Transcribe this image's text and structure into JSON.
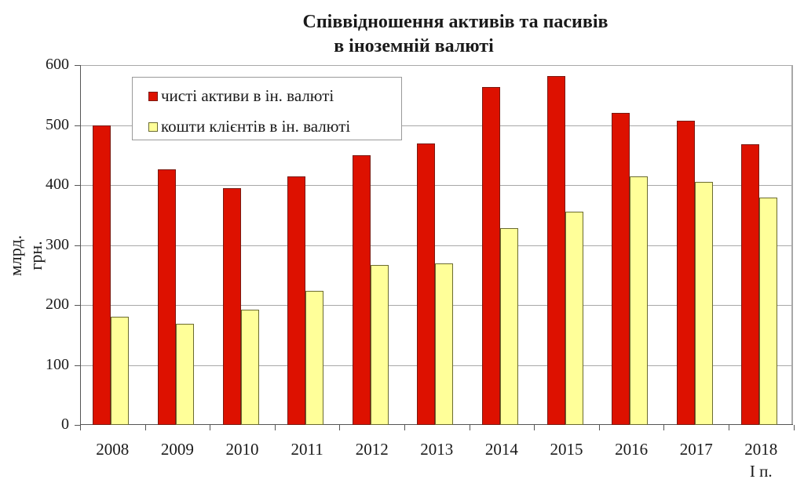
{
  "chart_data": {
    "type": "bar",
    "title": "Співвідношення активів та пасивів в іноземній валюті",
    "title_lines": [
      "Співвідношення активів та пасивів",
      "в іноземній валюті"
    ],
    "xlabel": "",
    "ylabel": "млрд. грн.",
    "ylim": [
      0,
      600
    ],
    "yticks": [
      0,
      100,
      200,
      300,
      400,
      500,
      600
    ],
    "grid": true,
    "legend_position": "top-left inside",
    "categories": [
      "2008",
      "2009",
      "2010",
      "2011",
      "2012",
      "2013",
      "2014",
      "2015",
      "2016",
      "2017",
      "2018"
    ],
    "category_sublabels": [
      "",
      "",
      "",
      "",
      "",
      "",
      "",
      "",
      "",
      "",
      "І п."
    ],
    "series": [
      {
        "name": "чисті активи в ін. валюті",
        "color": "#dd1100",
        "values": [
          500,
          426,
          395,
          415,
          450,
          469,
          563,
          582,
          520,
          507,
          468
        ]
      },
      {
        "name": "кошти клієнтів в ін. валюті",
        "color": "#ffff99",
        "values": [
          181,
          168,
          192,
          223,
          267,
          269,
          328,
          355,
          415,
          405,
          379
        ]
      }
    ]
  }
}
